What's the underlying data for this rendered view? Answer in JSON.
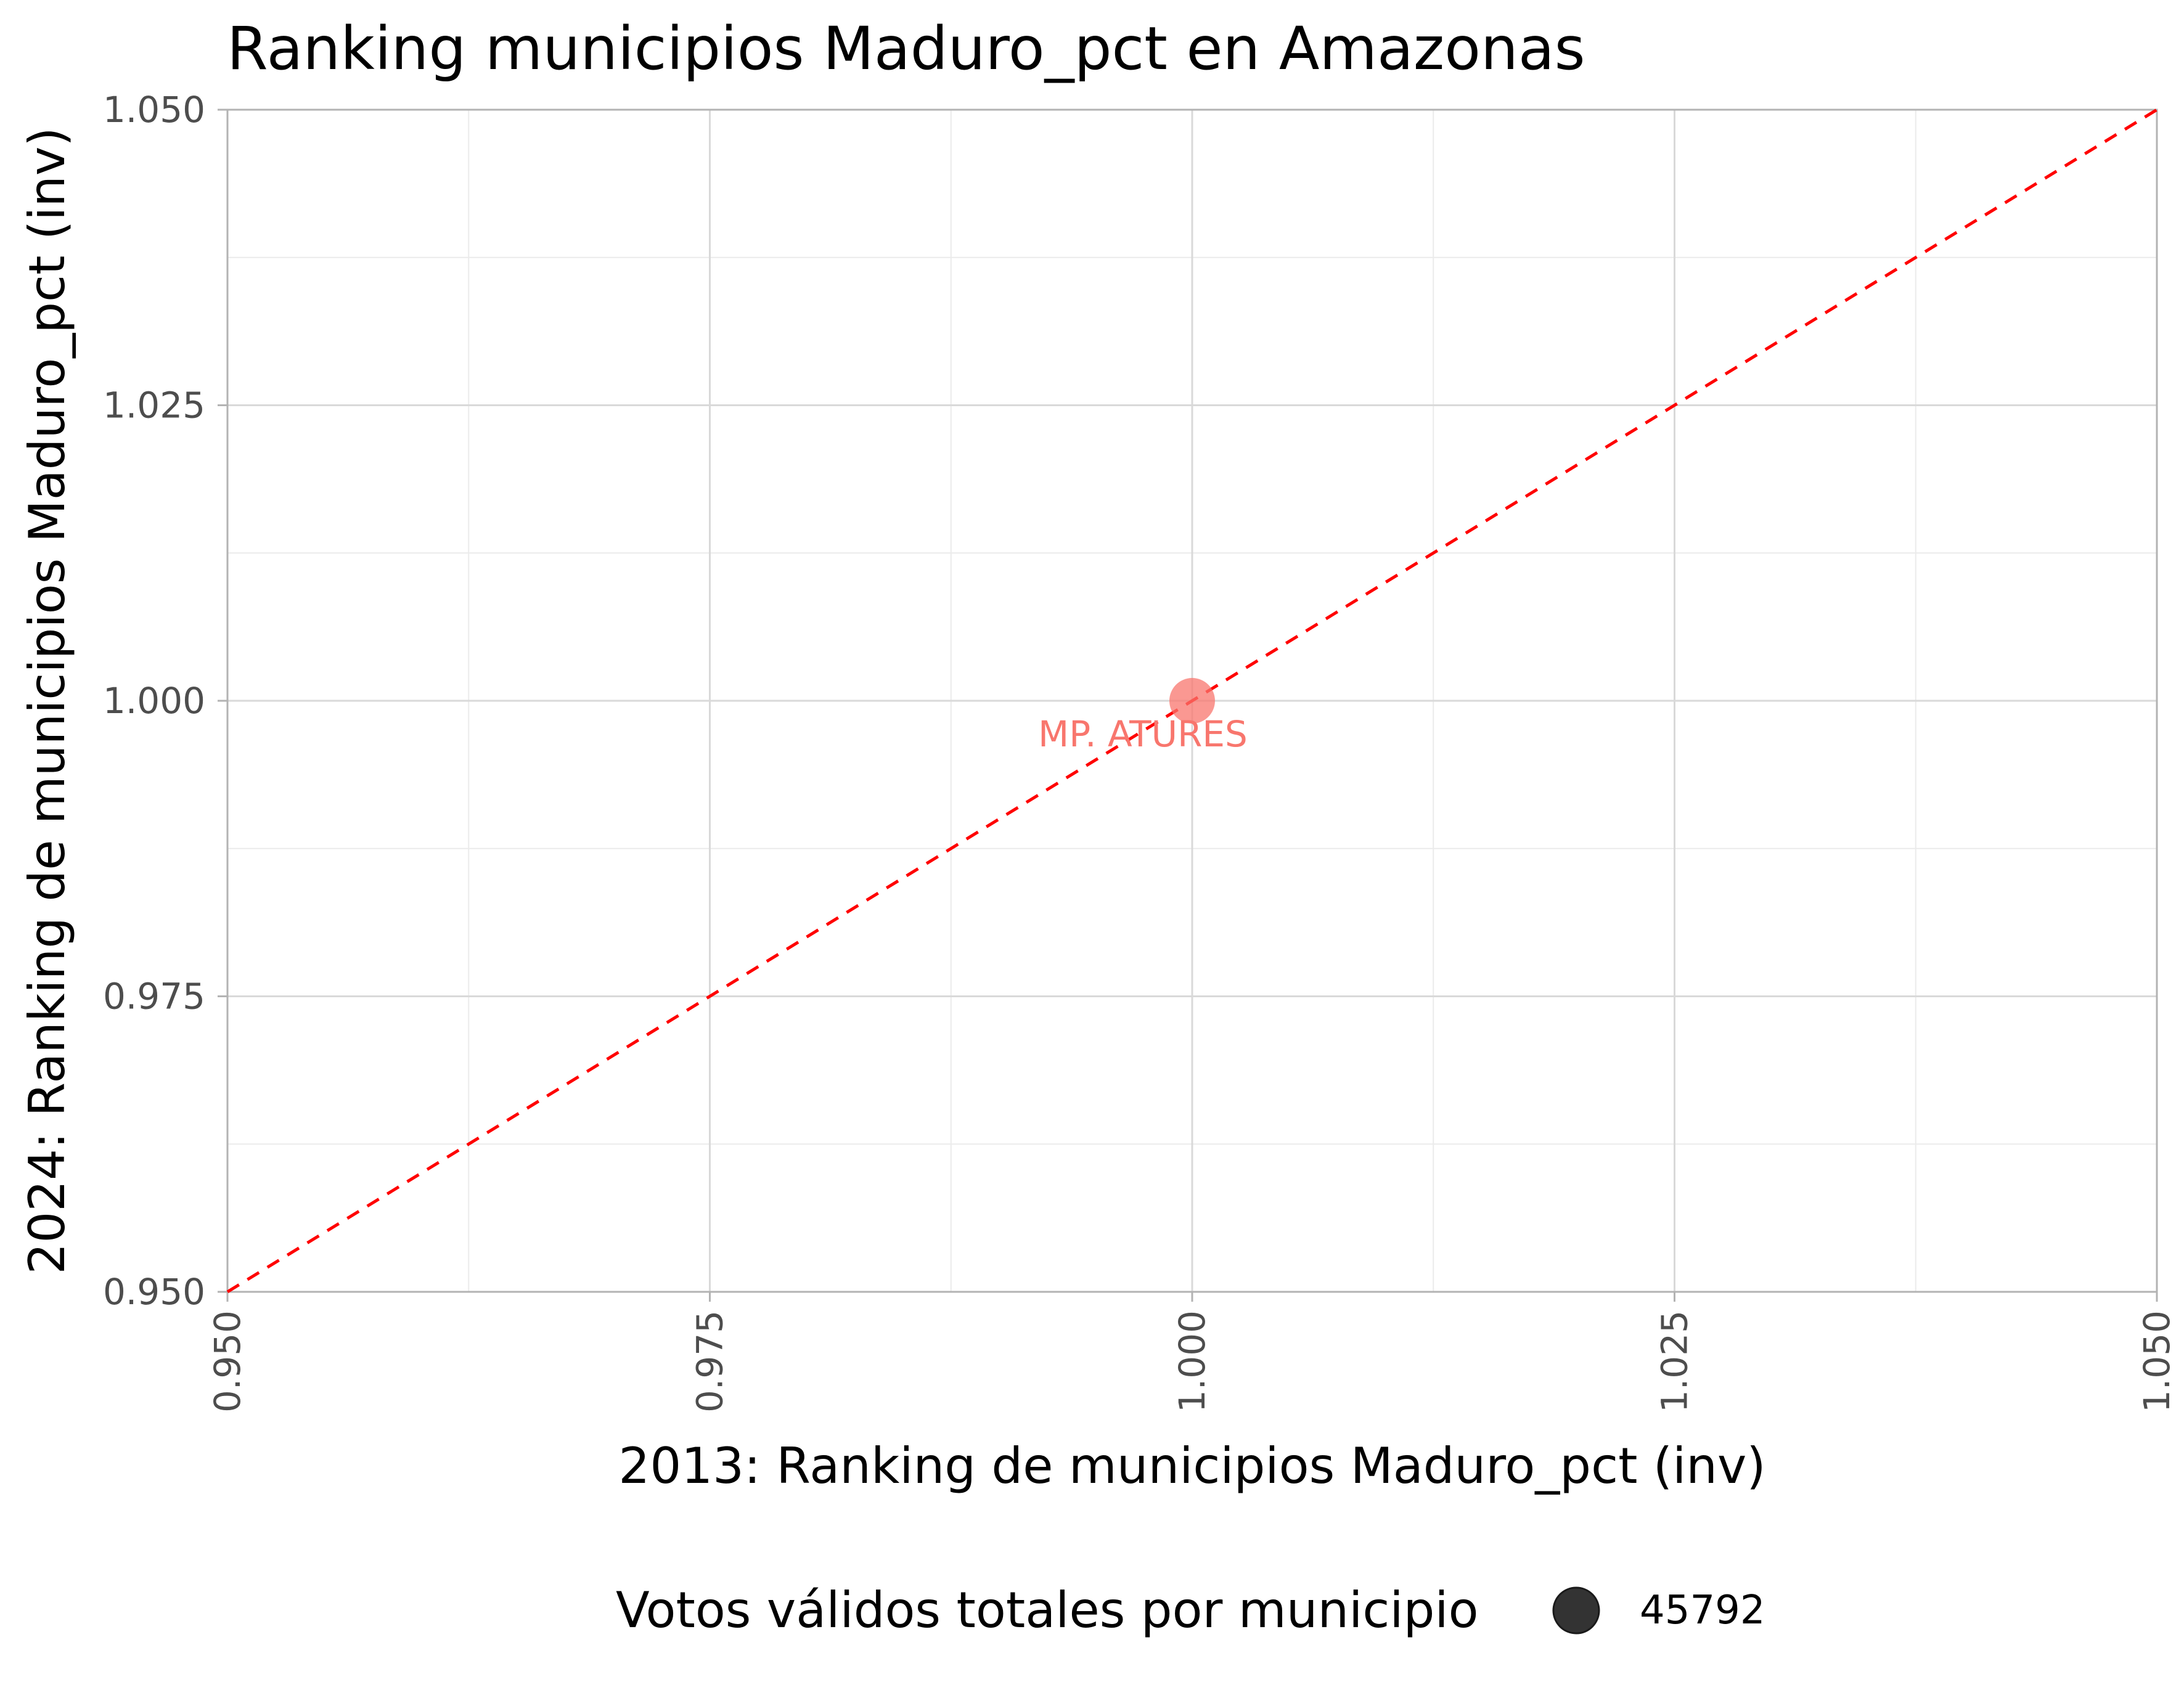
{
  "chart_data": {
    "type": "scatter",
    "title": "Ranking municipios Maduro_pct en Amazonas",
    "xlabel": "2013: Ranking de municipios Maduro_pct (inv)",
    "ylabel": "2024: Ranking de municipios Maduro_pct (inv)",
    "xlim": [
      0.95,
      1.05
    ],
    "ylim": [
      0.95,
      1.05
    ],
    "x_ticks": [
      0.95,
      0.975,
      1.0,
      1.025,
      1.05
    ],
    "y_ticks": [
      0.95,
      0.975,
      1.0,
      1.025,
      1.05
    ],
    "x_tick_labels": [
      "0.950",
      "0.975",
      "1.000",
      "1.025",
      "1.050"
    ],
    "y_tick_labels": [
      "0.950",
      "0.975",
      "1.000",
      "1.025",
      "1.050"
    ],
    "grid": true,
    "points": [
      {
        "label": "MP. ATURES",
        "x": 1.0,
        "y": 1.0,
        "size": 45792
      }
    ],
    "reference_line": {
      "style": "dashed",
      "color": "#ff0000",
      "from": [
        0.95,
        0.95
      ],
      "to": [
        1.05,
        1.05
      ]
    },
    "legend": {
      "title": "Votos válidos totales por municipio",
      "entries": [
        "45792"
      ],
      "position": "bottom"
    },
    "colors": {
      "point": "#f8766d",
      "reference_line": "#ff0000",
      "legend_marker": "#333333"
    }
  }
}
